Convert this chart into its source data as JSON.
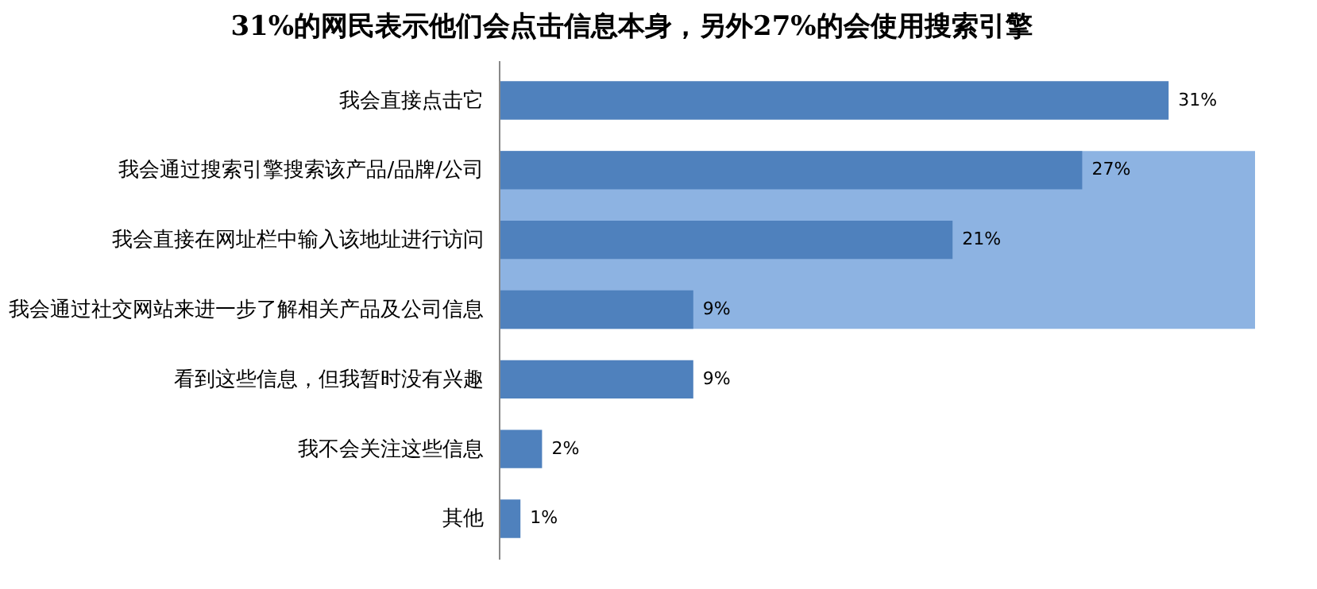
{
  "chart_data": {
    "type": "bar",
    "orientation": "horizontal",
    "title": "31%的网民表示他们会点击信息本身，另外27%的会使用搜索引擎",
    "categories": [
      "我会直接点击它",
      "我会通过搜索引擎搜索该产品/品牌/公司",
      "我会直接在网址栏中输入该地址进行访问",
      "我会通过社交网站来进一步了解相关产品及公司信息",
      "看到这些信息，但我暂时没有兴趣",
      "我不会关注这些信息",
      "其他"
    ],
    "values": [
      31,
      27,
      21,
      9,
      9,
      2,
      1
    ],
    "value_labels": [
      "31%",
      "27%",
      "21%",
      "9%",
      "9%",
      "2%",
      "1%"
    ],
    "color": "#4f81bd",
    "bands": [
      {
        "axis": "y",
        "from": "我会通过搜索引擎搜索该产品/品牌/公司",
        "to": "我会通过社交网站来进一步了解相关产品及公司信息",
        "color": "#8db3e2"
      }
    ],
    "tick_labels": "y"
  }
}
